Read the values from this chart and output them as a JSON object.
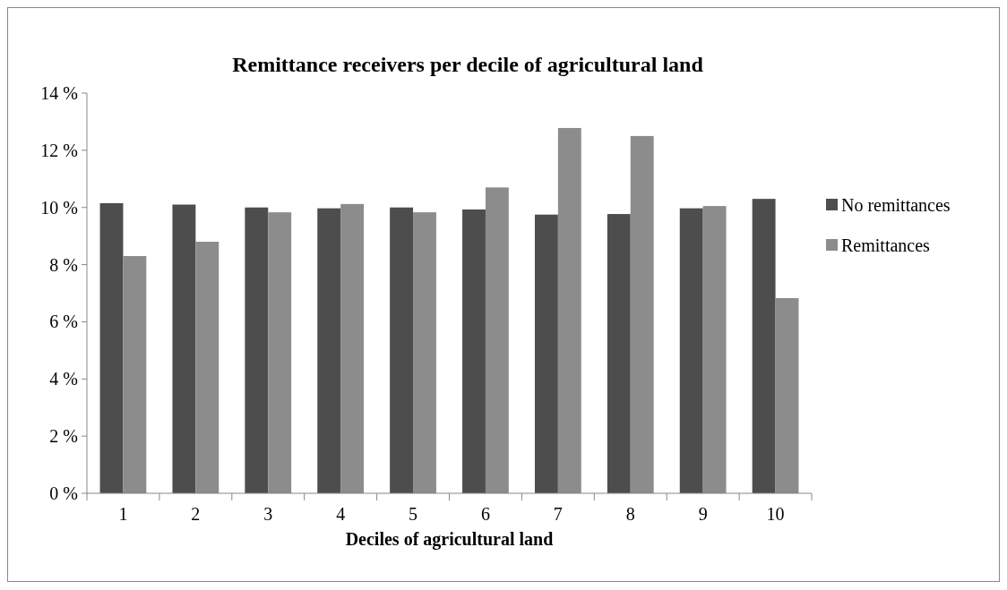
{
  "chart_data": {
    "type": "bar",
    "title": "Remittance receivers per decile of agricultural land",
    "xlabel": "Deciles of agricultural land",
    "categories": [
      "1",
      "2",
      "3",
      "4",
      "5",
      "6",
      "7",
      "8",
      "9",
      "10"
    ],
    "series": [
      {
        "name": "No remittances",
        "color": "#4d4d4d",
        "values": [
          10.15,
          10.1,
          10.0,
          9.97,
          10.0,
          9.93,
          9.75,
          9.77,
          9.97,
          10.3
        ]
      },
      {
        "name": "Remittances",
        "color": "#8c8c8c",
        "values": [
          8.3,
          8.8,
          9.83,
          10.12,
          9.83,
          10.7,
          12.78,
          12.5,
          10.05,
          6.83
        ]
      }
    ],
    "ylim": [
      0,
      14
    ],
    "yticks": [
      {
        "value": 0,
        "label": "0 %"
      },
      {
        "value": 2,
        "label": "2 %"
      },
      {
        "value": 4,
        "label": "4 %"
      },
      {
        "value": 6,
        "label": "6 %"
      },
      {
        "value": 8,
        "label": "8 %"
      },
      {
        "value": 10,
        "label": "10 %"
      },
      {
        "value": 12,
        "label": "12 %"
      },
      {
        "value": 14,
        "label": "14 %"
      }
    ],
    "grid": false,
    "legend": "right"
  }
}
